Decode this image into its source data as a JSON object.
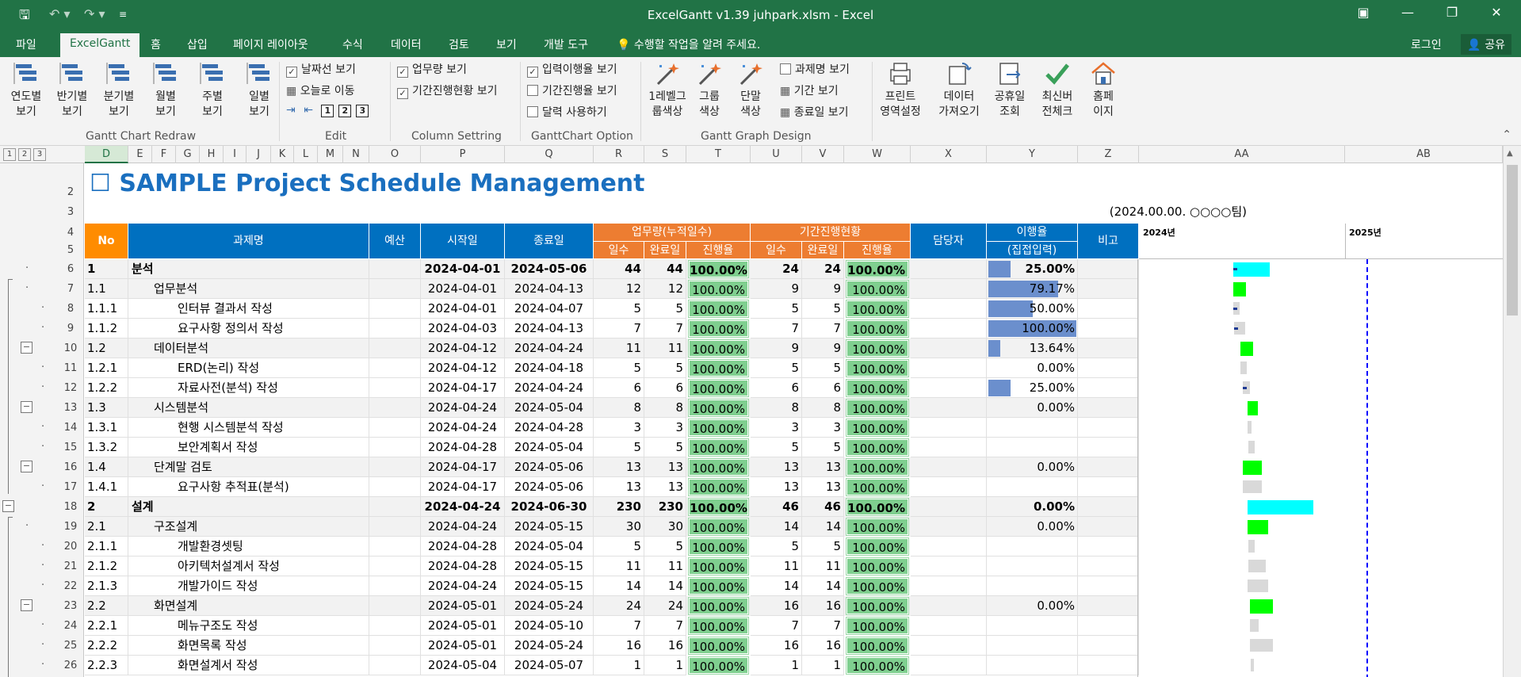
{
  "window": {
    "title": "ExcelGantt v1.39 juhpark.xlsm - Excel",
    "colors": {
      "excel_green": "#217346",
      "header_blue": "#0070c0",
      "header_orange": "#ed7d31",
      "no_orange": "#ff8c00",
      "progress_green": "#7fcf8f",
      "bar_blue": "#6b8fcd",
      "gantt_cyan": "#00ffff",
      "gantt_green": "#00ff00",
      "gantt_grey": "#d9d9d9",
      "today_line": "#0000ff"
    }
  },
  "menu": {
    "file": "파일",
    "excelgantt": "ExcelGantt",
    "home": "홈",
    "insert": "삽입",
    "page_layout": "페이지 레이아웃",
    "formulas": "수식",
    "data": "데이터",
    "review": "검토",
    "view": "보기",
    "developer": "개발 도구",
    "tell_me": "수행할 작업을 알려 주세요.",
    "login": "로그인",
    "share": "공유"
  },
  "ribbon": {
    "redraw": {
      "label": "Gantt Chart Redraw",
      "buttons": [
        {
          "l1": "연도별",
          "l2": "보기"
        },
        {
          "l1": "반기별",
          "l2": "보기"
        },
        {
          "l1": "분기별",
          "l2": "보기"
        },
        {
          "l1": "월별",
          "l2": "보기"
        },
        {
          "l1": "주별",
          "l2": "보기"
        },
        {
          "l1": "일별",
          "l2": "보기"
        }
      ]
    },
    "edit": {
      "label": "Edit",
      "date_line": "날짜선 보기",
      "goto_today": "오늘로 이동",
      "levels": [
        "1",
        "2",
        "3"
      ]
    },
    "column": {
      "label": "Column Settring",
      "workload": "업무량 보기",
      "progress": "기간진행현황 보기"
    },
    "option": {
      "label": "GanttChart Option",
      "input_rate": "입력이행율 보기",
      "period_rate": "기간진행율 보기",
      "calendar": "달력 사용하기"
    },
    "design": {
      "label": "Gantt Graph Design",
      "level_color": {
        "l1": "1레벨그",
        "l2": "룹색상"
      },
      "group_color": {
        "l1": "그룹",
        "l2": "색상"
      },
      "single_color": {
        "l1": "단말",
        "l2": "색상"
      },
      "task_name": "과제명 보기",
      "period": "기간 보기",
      "end_date": "종료일 보기"
    },
    "misc": {
      "print": {
        "l1": "프린트",
        "l2": "영역설정"
      },
      "import": {
        "l1": "데이터",
        "l2": "가져오기"
      },
      "holiday": {
        "l1": "공휴일",
        "l2": "조회"
      },
      "update": {
        "l1": "최신버",
        "l2": "전체크"
      },
      "home": {
        "l1": "홈페",
        "l2": "이지"
      }
    }
  },
  "columns": [
    "D",
    "E",
    "F",
    "G",
    "H",
    "I",
    "J",
    "K",
    "L",
    "M",
    "N",
    "O",
    "P",
    "Q",
    "R",
    "S",
    "T",
    "U",
    "V",
    "W",
    "X",
    "Y",
    "Z",
    "AA",
    "AB"
  ],
  "outline_levels": [
    "1",
    "2",
    "3"
  ],
  "sheet": {
    "title": "SAMPLE Project Schedule Management",
    "title_box": "☐",
    "subtitle": "(2024.00.00. ○○○○팀)",
    "headers": {
      "no": "No",
      "task": "과제명",
      "budget": "예산",
      "start": "시작일",
      "end": "종료일",
      "workload": "업무량(누적일수)",
      "period": "기간진행현황",
      "owner": "담당자",
      "rate": "이행율",
      "rate2": "(집접입력)",
      "note": "비고",
      "days": "일수",
      "done_days": "완료일",
      "progress": "진행율",
      "days2": "일수",
      "done_days2": "완료일",
      "progress2": "진행율",
      "year2024": "2024년",
      "year2025": "2025년"
    },
    "rows": [
      {
        "r": "6",
        "no": "1",
        "name": "분석",
        "lvl": 1,
        "start": "2024-04-01",
        "end": "2024-05-06",
        "w1": "44",
        "w2": "44",
        "wp": "100.00%",
        "p1": "24",
        "p2": "24",
        "pp": "100.00%",
        "rate": "25.00%",
        "rv": 0.25,
        "bold": true,
        "g": "cyan",
        "gs": 0.28,
        "gw": 0.1
      },
      {
        "r": "7",
        "no": "1.1",
        "name": "업무분석",
        "lvl": 2,
        "start": "2024-04-01",
        "end": "2024-04-13",
        "w1": "12",
        "w2": "12",
        "wp": "100.00%",
        "p1": "9",
        "p2": "9",
        "pp": "100.00%",
        "rate": "79.17%",
        "rv": 0.7917,
        "g": "green",
        "gs": 0.28,
        "gw": 0.035
      },
      {
        "r": "8",
        "no": "1.1.1",
        "name": "인터뷰 결과서 작성",
        "lvl": 3,
        "start": "2024-04-01",
        "end": "2024-04-07",
        "w1": "5",
        "w2": "5",
        "wp": "100.00%",
        "p1": "5",
        "p2": "5",
        "pp": "100.00%",
        "rate": "50.00%",
        "rv": 0.5,
        "g": "grey",
        "gs": 0.28,
        "gw": 0.017
      },
      {
        "r": "9",
        "no": "1.1.2",
        "name": "요구사항 정의서 작성",
        "lvl": 3,
        "start": "2024-04-03",
        "end": "2024-04-13",
        "w1": "7",
        "w2": "7",
        "wp": "100.00%",
        "p1": "7",
        "p2": "7",
        "pp": "100.00%",
        "rate": "100.00%",
        "rv": 1,
        "g": "grey",
        "gs": 0.282,
        "gw": 0.03
      },
      {
        "r": "10",
        "no": "1.2",
        "name": "데이터분석",
        "lvl": 2,
        "start": "2024-04-12",
        "end": "2024-04-24",
        "w1": "11",
        "w2": "11",
        "wp": "100.00%",
        "p1": "9",
        "p2": "9",
        "pp": "100.00%",
        "rate": "13.64%",
        "rv": 0.1364,
        "g": "green",
        "gs": 0.3,
        "gw": 0.035
      },
      {
        "r": "11",
        "no": "1.2.1",
        "name": "ERD(논리) 작성",
        "lvl": 3,
        "start": "2024-04-12",
        "end": "2024-04-18",
        "w1": "5",
        "w2": "5",
        "wp": "100.00%",
        "p1": "5",
        "p2": "5",
        "pp": "100.00%",
        "rate": "0.00%",
        "rv": 0,
        "g": "grey",
        "gs": 0.3,
        "gw": 0.017
      },
      {
        "r": "12",
        "no": "1.2.2",
        "name": "자료사전(분석) 작성",
        "lvl": 3,
        "start": "2024-04-17",
        "end": "2024-04-24",
        "w1": "6",
        "w2": "6",
        "wp": "100.00%",
        "p1": "6",
        "p2": "6",
        "pp": "100.00%",
        "rate": "25.00%",
        "rv": 0.25,
        "g": "grey",
        "gs": 0.305,
        "gw": 0.02
      },
      {
        "r": "13",
        "no": "1.3",
        "name": "시스템분석",
        "lvl": 2,
        "start": "2024-04-24",
        "end": "2024-05-04",
        "w1": "8",
        "w2": "8",
        "wp": "100.00%",
        "p1": "8",
        "p2": "8",
        "pp": "100.00%",
        "rate": "0.00%",
        "rv": 0,
        "g": "green",
        "gs": 0.318,
        "gw": 0.03
      },
      {
        "r": "14",
        "no": "1.3.1",
        "name": "현행 시스템분석 작성",
        "lvl": 3,
        "start": "2024-04-24",
        "end": "2024-04-28",
        "w1": "3",
        "w2": "3",
        "wp": "100.00%",
        "p1": "3",
        "p2": "3",
        "pp": "100.00%",
        "rate": "",
        "rv": 0,
        "g": "grey",
        "gs": 0.318,
        "gw": 0.012
      },
      {
        "r": "15",
        "no": "1.3.2",
        "name": "보안계획서 작성",
        "lvl": 3,
        "start": "2024-04-28",
        "end": "2024-05-04",
        "w1": "5",
        "w2": "5",
        "wp": "100.00%",
        "p1": "5",
        "p2": "5",
        "pp": "100.00%",
        "rate": "",
        "rv": 0,
        "g": "grey",
        "gs": 0.322,
        "gw": 0.017
      },
      {
        "r": "16",
        "no": "1.4",
        "name": "단계말 검토",
        "lvl": 2,
        "start": "2024-04-17",
        "end": "2024-05-06",
        "w1": "13",
        "w2": "13",
        "wp": "100.00%",
        "p1": "13",
        "p2": "13",
        "pp": "100.00%",
        "rate": "0.00%",
        "rv": 0,
        "g": "green",
        "gs": 0.305,
        "gw": 0.052
      },
      {
        "r": "17",
        "no": "1.4.1",
        "name": "요구사항 추적표(분석)",
        "lvl": 3,
        "start": "2024-04-17",
        "end": "2024-05-06",
        "w1": "13",
        "w2": "13",
        "wp": "100.00%",
        "p1": "13",
        "p2": "13",
        "pp": "100.00%",
        "rate": "",
        "rv": 0,
        "g": "grey",
        "gs": 0.305,
        "gw": 0.052
      },
      {
        "r": "18",
        "no": "2",
        "name": "설계",
        "lvl": 1,
        "start": "2024-04-24",
        "end": "2024-06-30",
        "w1": "230",
        "w2": "230",
        "wp": "100.00%",
        "p1": "46",
        "p2": "46",
        "pp": "100.00%",
        "rate": "0.00%",
        "rv": 0,
        "bold": true,
        "g": "cyan",
        "gs": 0.318,
        "gw": 0.18
      },
      {
        "r": "19",
        "no": "2.1",
        "name": "구조설계",
        "lvl": 2,
        "start": "2024-04-24",
        "end": "2024-05-15",
        "w1": "30",
        "w2": "30",
        "wp": "100.00%",
        "p1": "14",
        "p2": "14",
        "pp": "100.00%",
        "rate": "0.00%",
        "rv": 0,
        "g": "green",
        "gs": 0.318,
        "gw": 0.057
      },
      {
        "r": "20",
        "no": "2.1.1",
        "name": "개발환경셋팅",
        "lvl": 3,
        "start": "2024-04-28",
        "end": "2024-05-04",
        "w1": "5",
        "w2": "5",
        "wp": "100.00%",
        "p1": "5",
        "p2": "5",
        "pp": "100.00%",
        "rate": "",
        "rv": 0,
        "g": "grey",
        "gs": 0.322,
        "gw": 0.017
      },
      {
        "r": "21",
        "no": "2.1.2",
        "name": "아키텍처설계서 작성",
        "lvl": 3,
        "start": "2024-04-28",
        "end": "2024-05-15",
        "w1": "11",
        "w2": "11",
        "wp": "100.00%",
        "p1": "11",
        "p2": "11",
        "pp": "100.00%",
        "rate": "",
        "rv": 0,
        "g": "grey",
        "gs": 0.322,
        "gw": 0.047
      },
      {
        "r": "22",
        "no": "2.1.3",
        "name": "개발가이드 작성",
        "lvl": 3,
        "start": "2024-04-24",
        "end": "2024-05-15",
        "w1": "14",
        "w2": "14",
        "wp": "100.00%",
        "p1": "14",
        "p2": "14",
        "pp": "100.00%",
        "rate": "",
        "rv": 0,
        "g": "grey",
        "gs": 0.318,
        "gw": 0.057
      },
      {
        "r": "23",
        "no": "2.2",
        "name": "화면설계",
        "lvl": 2,
        "start": "2024-05-01",
        "end": "2024-05-24",
        "w1": "24",
        "w2": "24",
        "wp": "100.00%",
        "p1": "16",
        "p2": "16",
        "pp": "100.00%",
        "rate": "0.00%",
        "rv": 0,
        "g": "green",
        "gs": 0.325,
        "gw": 0.063
      },
      {
        "r": "24",
        "no": "2.2.1",
        "name": "메뉴구조도 작성",
        "lvl": 3,
        "start": "2024-05-01",
        "end": "2024-05-10",
        "w1": "7",
        "w2": "7",
        "wp": "100.00%",
        "p1": "7",
        "p2": "7",
        "pp": "100.00%",
        "rate": "",
        "rv": 0,
        "g": "grey",
        "gs": 0.325,
        "gw": 0.025
      },
      {
        "r": "25",
        "no": "2.2.2",
        "name": "화면목록 작성",
        "lvl": 3,
        "start": "2024-05-01",
        "end": "2024-05-24",
        "w1": "16",
        "w2": "16",
        "wp": "100.00%",
        "p1": "16",
        "p2": "16",
        "pp": "100.00%",
        "rate": "",
        "rv": 0,
        "g": "grey",
        "gs": 0.325,
        "gw": 0.063
      },
      {
        "r": "26",
        "no": "2.2.3",
        "name": "화면설계서 작성",
        "lvl": 3,
        "start": "2024-05-04",
        "end": "2024-05-07",
        "w1": "1",
        "w2": "1",
        "wp": "100.00%",
        "p1": "1",
        "p2": "1",
        "pp": "100.00%",
        "rate": "",
        "rv": 0,
        "g": "grey",
        "gs": 0.328,
        "gw": 0.008
      }
    ]
  }
}
